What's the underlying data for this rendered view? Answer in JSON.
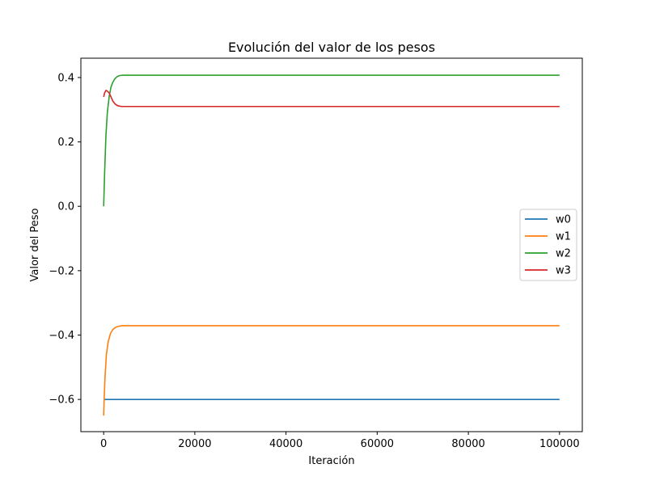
{
  "chart_data": {
    "type": "line",
    "title": "Evolución del valor de los pesos",
    "xlabel": "Iteración",
    "ylabel": "Valor del Peso",
    "xlim": [
      -5000,
      105000
    ],
    "ylim": [
      -0.7,
      0.46
    ],
    "xticks": [
      0,
      20000,
      40000,
      60000,
      80000,
      100000
    ],
    "xtick_labels": [
      "0",
      "20000",
      "40000",
      "60000",
      "80000",
      "100000"
    ],
    "yticks": [
      -0.6,
      -0.4,
      -0.2,
      0.0,
      0.2,
      0.4
    ],
    "ytick_labels": [
      "−0.6",
      "−0.4",
      "−0.2",
      "0.0",
      "0.2",
      "0.4"
    ],
    "grid": false,
    "legend_position": "center-right",
    "series": [
      {
        "name": "w0",
        "color": "#1f77b4",
        "x": [
          0,
          100000
        ],
        "y": [
          -0.6,
          -0.6
        ]
      },
      {
        "name": "w1",
        "color": "#ff7f0e",
        "x": [
          0,
          100,
          300,
          600,
          1000,
          1500,
          2000,
          2500,
          3000,
          3500,
          4000,
          5000,
          100000
        ],
        "y": [
          -0.65,
          -0.6,
          -0.53,
          -0.46,
          -0.42,
          -0.395,
          -0.383,
          -0.377,
          -0.374,
          -0.372,
          -0.371,
          -0.371,
          -0.371
        ]
      },
      {
        "name": "w2",
        "color": "#2ca02c",
        "x": [
          0,
          200,
          500,
          800,
          1200,
          1600,
          2000,
          2500,
          3000,
          3500,
          4000,
          5000,
          100000
        ],
        "y": [
          0.0,
          0.1,
          0.22,
          0.29,
          0.34,
          0.37,
          0.385,
          0.397,
          0.403,
          0.406,
          0.407,
          0.407,
          0.407
        ]
      },
      {
        "name": "w3",
        "color": "#d62728",
        "x": [
          0,
          200,
          500,
          800,
          1200,
          1600,
          2000,
          2500,
          3000,
          3500,
          4000,
          5000,
          100000
        ],
        "y": [
          0.34,
          0.352,
          0.36,
          0.358,
          0.352,
          0.34,
          0.327,
          0.318,
          0.313,
          0.311,
          0.31,
          0.31,
          0.31
        ]
      }
    ]
  }
}
